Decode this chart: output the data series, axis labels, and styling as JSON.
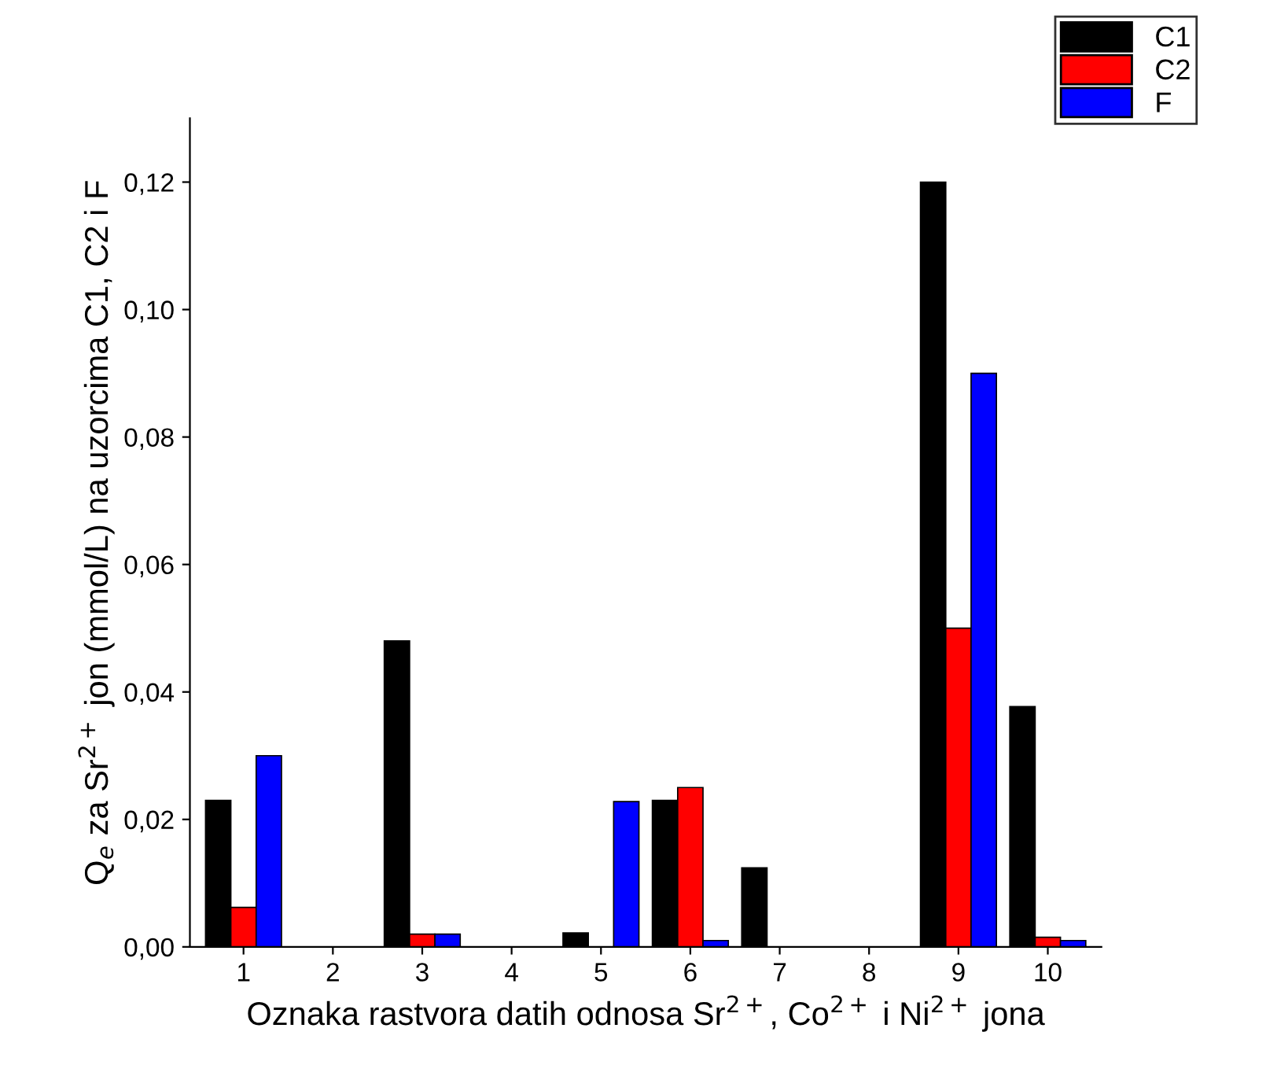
{
  "chart_data": {
    "type": "bar",
    "categories": [
      "1",
      "2",
      "3",
      "4",
      "5",
      "6",
      "7",
      "8",
      "9",
      "10"
    ],
    "series": [
      {
        "name": "C1",
        "color": "#000000",
        "values": [
          0.023,
          null,
          0.048,
          null,
          0.0022,
          0.023,
          0.0124,
          null,
          0.12,
          0.0377
        ]
      },
      {
        "name": "C2",
        "color": "#ff0000",
        "values": [
          0.0062,
          null,
          0.002,
          null,
          null,
          0.025,
          null,
          null,
          0.05,
          0.0015
        ]
      },
      {
        "name": "F",
        "color": "#0000ff",
        "values": [
          0.03,
          null,
          0.002,
          null,
          0.0228,
          0.001,
          null,
          null,
          0.09,
          0.001
        ]
      }
    ],
    "xlabel": "Oznaka rastvora datih odnosa Sr$^{2+}$, Co$^{2+}$ i Ni$^{2+}$ jona",
    "ylabel": "Q$_{e}$ za Sr$^{2+}$ jon (mmol/L) na uzorcima C1, C2 i F",
    "ylim": [
      0,
      0.13
    ],
    "yticks": [
      {
        "value": 0,
        "label": "0,00"
      },
      {
        "value": 0.02,
        "label": "0,02"
      },
      {
        "value": 0.04,
        "label": "0,04"
      },
      {
        "value": 0.06,
        "label": "0,06"
      },
      {
        "value": 0.08,
        "label": "0,08"
      },
      {
        "value": 0.1,
        "label": "0,10"
      },
      {
        "value": 0.12,
        "label": "0,12"
      }
    ],
    "legend": "top right",
    "grid": false
  }
}
